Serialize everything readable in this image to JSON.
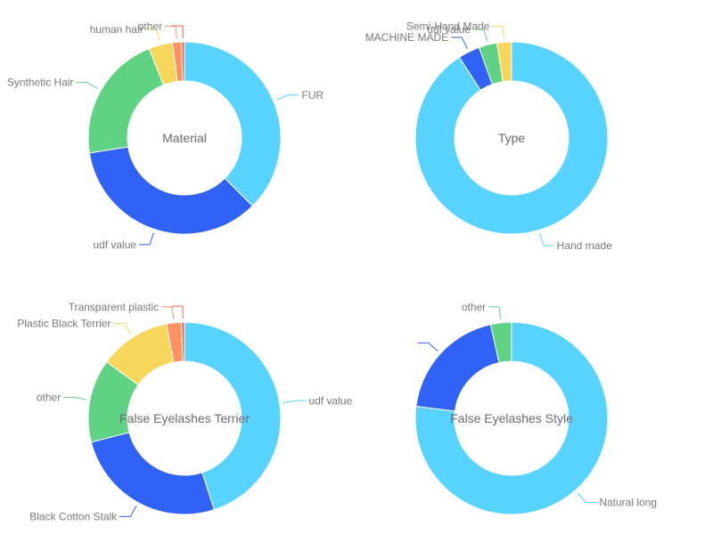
{
  "chart_data": [
    {
      "type": "pie",
      "title": "Material",
      "slices": [
        {
          "label": "FUR",
          "value": 37.5,
          "color": "#58d3ff"
        },
        {
          "label": "udf value",
          "value": 35.0,
          "color": "#2f62f5"
        },
        {
          "label": "Synthetic Hair",
          "value": 21.5,
          "color": "#5fd383"
        },
        {
          "label": "human hair",
          "value": 4.0,
          "color": "#f8d55b"
        },
        {
          "label": "other",
          "value": 1.5,
          "color": "#fe9262"
        },
        {
          "label": "",
          "value": 0.5,
          "color": "#e8684a"
        }
      ]
    },
    {
      "type": "pie",
      "title": "Type",
      "slices": [
        {
          "label": "Hand made",
          "value": 89.5,
          "color": "#58d3ff"
        },
        {
          "label": "MACHINE MADE",
          "value": 3.6,
          "color": "#2f62f5"
        },
        {
          "label": "udf value",
          "value": 3.0,
          "color": "#5fd383"
        },
        {
          "label": "Semi-Hand Made",
          "value": 2.4,
          "color": "#f8d55b"
        }
      ]
    },
    {
      "type": "pie",
      "title": "False Eyelashes Terrier",
      "slices": [
        {
          "label": "udf value",
          "value": 45.0,
          "color": "#58d3ff"
        },
        {
          "label": "Black Cotton Stalk",
          "value": 26.0,
          "color": "#2f62f5"
        },
        {
          "label": "other",
          "value": 14.0,
          "color": "#5fd383"
        },
        {
          "label": "Plastic Black Terrier",
          "value": 12.0,
          "color": "#f8d55b"
        },
        {
          "label": "Transparent plastic",
          "value": 2.5,
          "color": "#fe9262"
        },
        {
          "label": "",
          "value": 0.5,
          "color": "#e8684a"
        }
      ]
    },
    {
      "type": "pie",
      "title": "False Eyelashes Style",
      "slices": [
        {
          "label": "Natural long",
          "value": 77.0,
          "color": "#58d3ff"
        },
        {
          "label": "",
          "value": 19.5,
          "color": "#2f62f5"
        },
        {
          "label": "other",
          "value": 3.5,
          "color": "#5fd383"
        }
      ]
    }
  ]
}
